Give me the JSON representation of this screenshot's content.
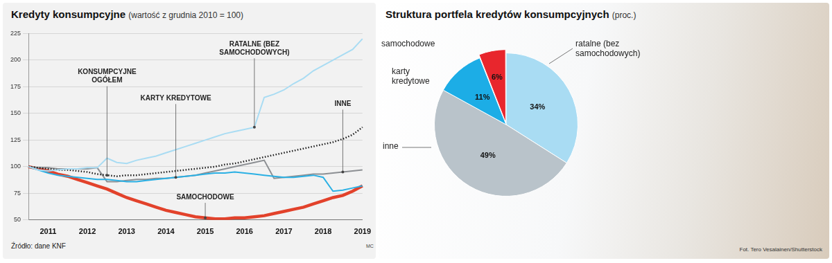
{
  "chart_data": [
    {
      "type": "line",
      "title": "Kredyty konsumpcyjne",
      "subtitle": "(wartość z grudnia 2010 = 100)",
      "categories": [
        null,
        null,
        "2011",
        null,
        null,
        null,
        "2012",
        null,
        null,
        null,
        "2013",
        null,
        null,
        null,
        "2014",
        null,
        null,
        null,
        "2015",
        null,
        null,
        null,
        "2016",
        null,
        null,
        null,
        "2017",
        null,
        null,
        null,
        "2018",
        null,
        null,
        null,
        "2019"
      ],
      "series": [
        {
          "name": "RATALNE (BEZ SAMOCHODOWYCH)",
          "color": "#a9dcf3",
          "line_style": "solid",
          "marker": "none",
          "values": [
            100,
            97,
            96,
            97,
            98,
            98,
            99,
            99,
            108,
            104,
            103,
            106,
            108,
            110,
            113,
            116,
            119,
            122,
            125,
            128,
            131,
            133,
            135,
            137,
            165,
            168,
            172,
            178,
            183,
            190,
            195,
            200,
            205,
            210,
            220
          ]
        },
        {
          "name": "KONSUMPCYJNE OGÓŁEM",
          "color": "#1a1a1a",
          "line_style": "dotted",
          "marker": "none",
          "values": [
            100,
            99,
            98,
            97,
            97,
            96,
            95,
            93,
            92,
            91,
            92,
            92,
            93,
            94,
            95,
            96,
            97,
            98,
            99,
            100,
            102,
            103,
            105,
            107,
            109,
            111,
            113,
            115,
            117,
            119,
            121,
            123,
            126,
            130,
            137
          ]
        },
        {
          "name": "KARTY KREDYTOWE",
          "color": "#2ab0e4",
          "line_style": "solid",
          "marker": "none",
          "values": [
            100,
            97,
            94,
            92,
            91,
            90,
            89,
            88,
            88,
            87,
            86,
            86,
            87,
            88,
            89,
            90,
            91,
            92,
            93,
            94,
            94,
            95,
            94,
            93,
            92,
            91,
            90,
            90,
            91,
            92,
            90,
            77,
            78,
            80,
            82
          ]
        },
        {
          "name": "INNE",
          "color": "#8c8f93",
          "line_style": "solid",
          "marker": "none",
          "values": [
            100,
            99,
            99,
            98,
            98,
            98,
            98,
            99,
            86,
            86,
            87,
            88,
            88,
            89,
            89,
            90,
            91,
            92,
            94,
            96,
            98,
            100,
            102,
            104,
            106,
            89,
            90,
            91,
            92,
            93,
            93,
            94,
            95,
            96,
            97
          ]
        },
        {
          "name": "SAMOCHODOWE",
          "color": "#e2422b",
          "line_style": "solid",
          "marker": "none",
          "values": [
            100,
            98,
            96,
            93,
            91,
            88,
            85,
            82,
            79,
            75,
            71,
            68,
            65,
            62,
            59,
            57,
            55,
            53,
            52,
            51,
            51,
            52,
            52,
            53,
            54,
            56,
            58,
            60,
            62,
            65,
            68,
            71,
            73,
            77,
            82
          ]
        }
      ],
      "ylim": [
        50,
        225
      ],
      "yticks": [
        50,
        75,
        100,
        125,
        150,
        175,
        200,
        225
      ],
      "grid": true
    },
    {
      "type": "pie",
      "title": "Struktura portfela kredytów konsumpcyjnych",
      "subtitle": "(proc.)",
      "categories": [
        "ratalne (bez samochodowych)",
        "inne",
        "karty kredytowe",
        "samochodowe"
      ],
      "values": [
        34,
        49,
        11,
        6
      ],
      "value_labels": [
        "34%",
        "49%",
        "11%",
        "6%"
      ],
      "colors": [
        "#a9dcf3",
        "#b9c3ca",
        "#1cade6",
        "#e8262d"
      ],
      "data_labels": true
    }
  ],
  "source": "Źródło: dane KNF",
  "author": "MC",
  "photo_credit": "Fot. Tero Vesalainen/Shutterstock"
}
